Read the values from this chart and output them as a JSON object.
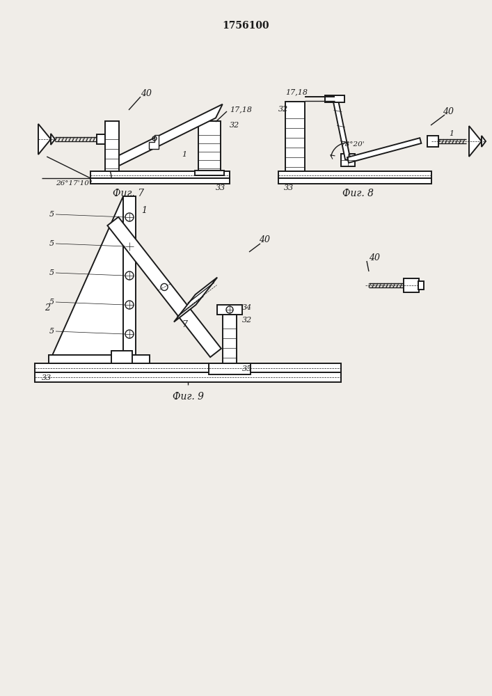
{
  "title": "1756100",
  "fig7_caption": "Фиг. 7",
  "fig8_caption": "Фиг. 8",
  "fig9_caption": "Фиг. 9",
  "line_color": "#1a1a1a",
  "bg_color": "#f0ede8",
  "lw": 1.0,
  "lw2": 1.4
}
